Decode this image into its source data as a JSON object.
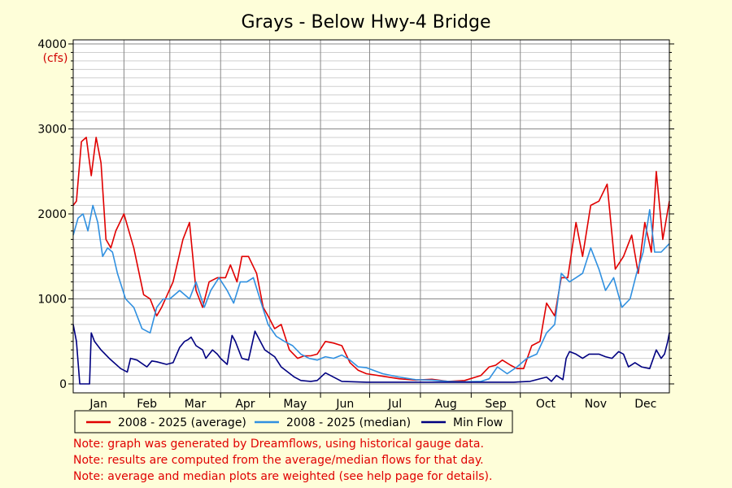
{
  "chart_data": {
    "type": "line",
    "title": "Grays - Below Hwy-4 Bridge",
    "y_unit": "(cfs)",
    "ylim": [
      0,
      4000
    ],
    "yticks": [
      0,
      1000,
      2000,
      3000,
      4000
    ],
    "months": [
      "Jan",
      "Feb",
      "Mar",
      "Apr",
      "May",
      "Jun",
      "Jul",
      "Aug",
      "Sep",
      "Oct",
      "Nov",
      "Dec"
    ],
    "grid": true,
    "legend_position": "bottom",
    "series": [
      {
        "name": "2008 - 2025 (average)",
        "color": "#e00000",
        "x": [
          1,
          3,
          6,
          9,
          12,
          15,
          18,
          21,
          24,
          27,
          32,
          38,
          44,
          48,
          52,
          55,
          62,
          68,
          72,
          76,
          80,
          84,
          89,
          94,
          97,
          101,
          104,
          108,
          113,
          117,
          120,
          124,
          128,
          133,
          138,
          142,
          146,
          150,
          155,
          160,
          165,
          170,
          175,
          180,
          190,
          200,
          210,
          220,
          230,
          240,
          250,
          255,
          259,
          263,
          268,
          272,
          276,
          281,
          286,
          290,
          295,
          299,
          303,
          308,
          312,
          317,
          322,
          327,
          332,
          337,
          342,
          346,
          350,
          354,
          357,
          361,
          365
        ],
        "y": [
          2100,
          2150,
          2850,
          2900,
          2450,
          2900,
          2600,
          1700,
          1600,
          1800,
          2000,
          1600,
          1050,
          1000,
          800,
          900,
          1200,
          1700,
          1900,
          1100,
          900,
          1200,
          1250,
          1250,
          1400,
          1200,
          1500,
          1500,
          1300,
          900,
          800,
          650,
          700,
          400,
          300,
          330,
          330,
          350,
          500,
          480,
          450,
          250,
          160,
          120,
          90,
          60,
          45,
          55,
          30,
          40,
          100,
          200,
          220,
          280,
          220,
          180,
          180,
          450,
          500,
          950,
          800,
          1250,
          1250,
          1900,
          1500,
          2100,
          2150,
          2350,
          1350,
          1500,
          1750,
          1300,
          1900,
          1550,
          2500,
          1700,
          2150
        ]
      },
      {
        "name": "2008 - 2025 (median)",
        "color": "#3090e0",
        "x": [
          1,
          4,
          7,
          10,
          13,
          16,
          19,
          22,
          25,
          28,
          33,
          38,
          43,
          48,
          52,
          56,
          60,
          66,
          72,
          76,
          81,
          85,
          90,
          95,
          99,
          103,
          107,
          111,
          115,
          120,
          125,
          130,
          135,
          140,
          145,
          150,
          155,
          160,
          165,
          170,
          175,
          180,
          190,
          200,
          210,
          220,
          230,
          240,
          250,
          255,
          260,
          266,
          272,
          278,
          284,
          290,
          295,
          299,
          304,
          308,
          312,
          317,
          322,
          326,
          331,
          336,
          341,
          345,
          349,
          353,
          356,
          360,
          365
        ],
        "y": [
          1750,
          1950,
          2000,
          1800,
          2100,
          1900,
          1500,
          1600,
          1550,
          1300,
          1000,
          900,
          650,
          600,
          900,
          1000,
          1000,
          1100,
          1000,
          1200,
          900,
          1100,
          1250,
          1100,
          950,
          1200,
          1200,
          1250,
          1000,
          700,
          560,
          500,
          450,
          350,
          300,
          280,
          320,
          300,
          340,
          280,
          200,
          190,
          120,
          80,
          50,
          45,
          30,
          25,
          30,
          60,
          200,
          120,
          200,
          300,
          350,
          600,
          700,
          1300,
          1200,
          1250,
          1300,
          1600,
          1350,
          1100,
          1250,
          900,
          1000,
          1300,
          1550,
          2050,
          1550,
          1550,
          1650
        ]
      },
      {
        "name": "Min Flow",
        "color": "#000080",
        "x": [
          1,
          3,
          5,
          8,
          11,
          12,
          14,
          18,
          23,
          30,
          34,
          36,
          40,
          46,
          49,
          52,
          58,
          62,
          66,
          69,
          71,
          73,
          76,
          80,
          82,
          86,
          89,
          91,
          95,
          98,
          100,
          104,
          108,
          112,
          118,
          124,
          128,
          136,
          140,
          146,
          150,
          155,
          165,
          180,
          200,
          220,
          240,
          260,
          270,
          280,
          290,
          293,
          296,
          300,
          302,
          304,
          308,
          312,
          316,
          322,
          326,
          330,
          334,
          337,
          340,
          344,
          348,
          353,
          357,
          360,
          362,
          364,
          365
        ],
        "y": [
          700,
          500,
          0,
          0,
          0,
          600,
          500,
          400,
          300,
          180,
          140,
          300,
          280,
          200,
          270,
          260,
          230,
          250,
          430,
          500,
          520,
          550,
          450,
          400,
          300,
          400,
          350,
          300,
          230,
          570,
          500,
          300,
          280,
          620,
          400,
          320,
          200,
          80,
          40,
          30,
          40,
          130,
          30,
          20,
          20,
          20,
          20,
          20,
          20,
          30,
          80,
          30,
          100,
          50,
          300,
          380,
          350,
          300,
          350,
          350,
          320,
          300,
          380,
          350,
          200,
          250,
          200,
          180,
          400,
          300,
          350,
          500,
          600
        ]
      }
    ],
    "notes": [
      "Note: graph was generated by Dreamflows, using historical gauge data.",
      "Note: results are computed from the average/median flows for that day.",
      "Note: average and median plots are weighted (see help page for details)."
    ]
  }
}
